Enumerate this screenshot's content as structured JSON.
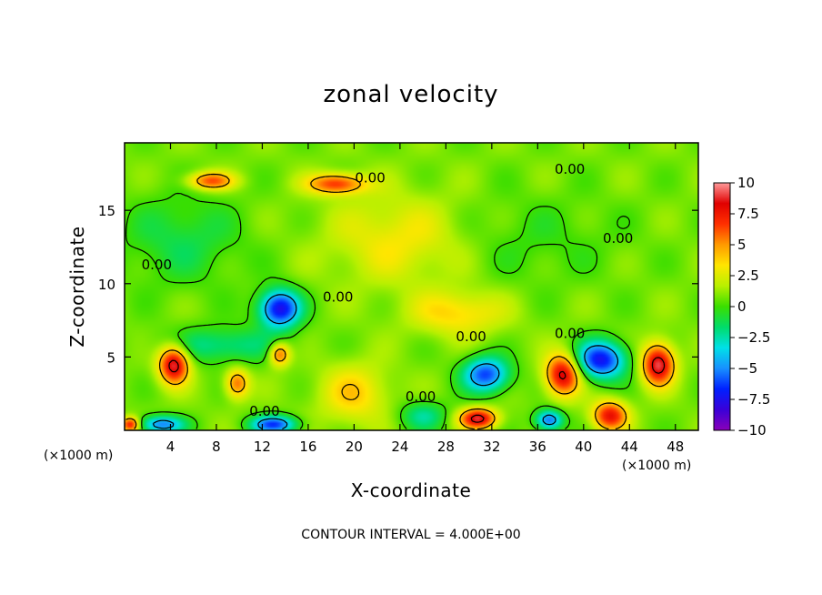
{
  "chart_data": {
    "type": "heatmap",
    "title": "zonal velocity",
    "xlabel": "X-coordinate",
    "ylabel": "Z-coordinate",
    "x_unit_left": "(×1000 m)",
    "x_unit_right": "(×1000 m)",
    "xlim": [
      0,
      50
    ],
    "ylim": [
      0,
      19.6
    ],
    "x_ticks": [
      4,
      8,
      12,
      16,
      20,
      24,
      28,
      32,
      36,
      40,
      44,
      48
    ],
    "y_ticks": [
      5,
      10,
      15
    ],
    "colorbar": {
      "range": [
        -10,
        10
      ],
      "tick_values": [
        10,
        7.5,
        5,
        2.5,
        0,
        -2.5,
        -5,
        -7.5,
        -10
      ],
      "tick_labels": [
        "10",
        "7.5",
        "5",
        "2.5",
        "0",
        "−2.5",
        "−5",
        "−7.5",
        "−10"
      ],
      "colors": [
        "#8a00b8",
        "#3a00d8",
        "#0020ff",
        "#1890ff",
        "#00e0e8",
        "#00dc6a",
        "#3ade00",
        "#b8f000",
        "#ffe600",
        "#ff9a00",
        "#ff3000",
        "#e00000",
        "#ff9a9a"
      ]
    },
    "contour_label": "0.00",
    "footer": "CONTOUR INTERVAL = 4.000E+00",
    "background_value": 0.8,
    "features": [
      {
        "x": 4.3,
        "z": 4.5,
        "value": 8.5,
        "rx": 1.3,
        "rz": 1.3
      },
      {
        "x": 13.5,
        "z": 8.3,
        "value": -8.5,
        "rx": 1.8,
        "rz": 1.3
      },
      {
        "x": 30.8,
        "z": 0.8,
        "value": 8.0,
        "rx": 1.6,
        "rz": 0.7
      },
      {
        "x": 31.5,
        "z": 3.8,
        "value": -7.0,
        "rx": 2.0,
        "rz": 1.2
      },
      {
        "x": 38.2,
        "z": 3.8,
        "value": 8.0,
        "rx": 1.5,
        "rz": 1.4
      },
      {
        "x": 41.5,
        "z": 4.8,
        "value": -8.0,
        "rx": 2.2,
        "rz": 1.3
      },
      {
        "x": 46.5,
        "z": 4.5,
        "value": 8.5,
        "rx": 1.4,
        "rz": 1.4
      },
      {
        "x": 42.3,
        "z": 1.0,
        "value": 7.0,
        "rx": 1.5,
        "rz": 1.0
      },
      {
        "x": 37.0,
        "z": 0.7,
        "value": -6.5,
        "rx": 1.2,
        "rz": 0.7
      },
      {
        "x": 13.0,
        "z": 0.4,
        "value": -7.0,
        "rx": 2.0,
        "rz": 0.6
      },
      {
        "x": 3.2,
        "z": 0.4,
        "value": -6.0,
        "rx": 2.0,
        "rz": 0.6
      },
      {
        "x": 0.5,
        "z": 0.4,
        "value": 7.0,
        "rx": 0.8,
        "rz": 0.5
      },
      {
        "x": 9.8,
        "z": 3.2,
        "value": 5.0,
        "rx": 1.0,
        "rz": 1.0
      },
      {
        "x": 13.5,
        "z": 5.2,
        "value": 5.5,
        "rx": 0.9,
        "rz": 0.8
      },
      {
        "x": 7.5,
        "z": 17.0,
        "value": 5.5,
        "rx": 2.0,
        "rz": 0.6
      },
      {
        "x": 18.5,
        "z": 16.8,
        "value": 6.0,
        "rx": 2.5,
        "rz": 0.7
      },
      {
        "x": 29.0,
        "z": 8.0,
        "value": 3.0,
        "rx": 4.0,
        "rz": 1.5
      },
      {
        "x": 24.0,
        "z": 13.0,
        "value": 2.5,
        "rx": 6.0,
        "rz": 3.0
      },
      {
        "x": 8.5,
        "z": 5.8,
        "value": -3.0,
        "rx": 5.0,
        "rz": 1.2
      },
      {
        "x": 5.0,
        "z": 13.0,
        "value": -2.0,
        "rx": 5.0,
        "rz": 3.0
      },
      {
        "x": 35.0,
        "z": 13.0,
        "value": -1.0,
        "rx": 8.0,
        "rz": 3.0
      },
      {
        "x": 20.0,
        "z": 2.5,
        "value": 3.0,
        "rx": 3.0,
        "rz": 2.0
      },
      {
        "x": 26.0,
        "z": 1.0,
        "value": -3.0,
        "rx": 2.0,
        "rz": 1.0
      }
    ],
    "contour_labels_at": [
      {
        "x": 21.4,
        "z": 17.2
      },
      {
        "x": 38.8,
        "z": 17.8
      },
      {
        "x": 43.0,
        "z": 13.1
      },
      {
        "x": 2.8,
        "z": 11.3
      },
      {
        "x": 18.6,
        "z": 9.1
      },
      {
        "x": 30.2,
        "z": 6.4
      },
      {
        "x": 38.8,
        "z": 6.6
      },
      {
        "x": 25.8,
        "z": 2.3
      },
      {
        "x": 12.2,
        "z": 1.3
      }
    ]
  }
}
